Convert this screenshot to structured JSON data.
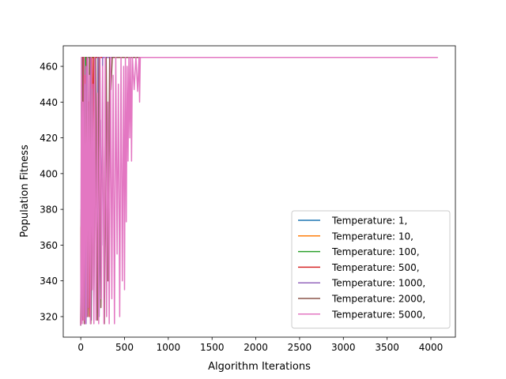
{
  "chart_data": {
    "type": "line",
    "title": "",
    "xlabel": "Algorithm Iterations",
    "ylabel": "Population Fitness",
    "xlim": [
      -200,
      4280
    ],
    "ylim": [
      308.5,
      471.5
    ],
    "xticks": [
      0,
      500,
      1000,
      1500,
      2000,
      2500,
      3000,
      3500,
      4000
    ],
    "yticks": [
      320,
      340,
      360,
      380,
      400,
      420,
      440,
      460
    ],
    "grid": false,
    "legend_position": "lower-right",
    "series": [
      {
        "name": "Temperature: 1,",
        "color": "#1f77b4",
        "converge_at": 20,
        "end_x": 4050,
        "points": [
          [
            0,
            315
          ],
          [
            2,
            360
          ],
          [
            4,
            318
          ],
          [
            6,
            440
          ],
          [
            8,
            330
          ],
          [
            10,
            465
          ],
          [
            12,
            350
          ],
          [
            15,
            420
          ],
          [
            18,
            465
          ],
          [
            20,
            465
          ],
          [
            4050,
            465
          ]
        ]
      },
      {
        "name": "Temperature: 10,",
        "color": "#ff7f0e",
        "converge_at": 30,
        "end_x": 4050,
        "points": [
          [
            0,
            316
          ],
          [
            3,
            370
          ],
          [
            6,
            320
          ],
          [
            9,
            450
          ],
          [
            12,
            335
          ],
          [
            15,
            465
          ],
          [
            18,
            345
          ],
          [
            22,
            430
          ],
          [
            26,
            465
          ],
          [
            30,
            465
          ],
          [
            4050,
            465
          ]
        ]
      },
      {
        "name": "Temperature: 100,",
        "color": "#2ca02c",
        "converge_at": 60,
        "end_x": 4050,
        "points": [
          [
            0,
            315
          ],
          [
            5,
            380
          ],
          [
            10,
            320
          ],
          [
            15,
            455
          ],
          [
            20,
            330
          ],
          [
            25,
            465
          ],
          [
            30,
            350
          ],
          [
            35,
            440
          ],
          [
            40,
            325
          ],
          [
            45,
            465
          ],
          [
            50,
            360
          ],
          [
            55,
            465
          ],
          [
            60,
            465
          ],
          [
            4050,
            465
          ]
        ]
      },
      {
        "name": "Temperature: 500,",
        "color": "#d62728",
        "converge_at": 150,
        "end_x": 4050,
        "points": [
          [
            0,
            316
          ],
          [
            10,
            430
          ],
          [
            20,
            318
          ],
          [
            30,
            465
          ],
          [
            40,
            335
          ],
          [
            50,
            455
          ],
          [
            60,
            320
          ],
          [
            70,
            465
          ],
          [
            80,
            345
          ],
          [
            90,
            440
          ],
          [
            100,
            320
          ],
          [
            110,
            465
          ],
          [
            120,
            350
          ],
          [
            130,
            465
          ],
          [
            140,
            400
          ],
          [
            150,
            465
          ],
          [
            4050,
            465
          ]
        ]
      },
      {
        "name": "Temperature: 1000,",
        "color": "#9467bd",
        "converge_at": 250,
        "end_x": 4050,
        "points": [
          [
            0,
            315
          ],
          [
            15,
            465
          ],
          [
            30,
            320
          ],
          [
            45,
            450
          ],
          [
            60,
            316
          ],
          [
            75,
            465
          ],
          [
            90,
            330
          ],
          [
            105,
            465
          ],
          [
            120,
            318
          ],
          [
            135,
            445
          ],
          [
            150,
            325
          ],
          [
            165,
            465
          ],
          [
            180,
            340
          ],
          [
            195,
            465
          ],
          [
            210,
            320
          ],
          [
            225,
            430
          ],
          [
            240,
            360
          ],
          [
            250,
            465
          ],
          [
            4050,
            465
          ]
        ]
      },
      {
        "name": "Temperature: 2000,",
        "color": "#8c564b",
        "converge_at": 360,
        "end_x": 4050,
        "points": [
          [
            0,
            315
          ],
          [
            20,
            465
          ],
          [
            40,
            316
          ],
          [
            60,
            455
          ],
          [
            80,
            320
          ],
          [
            100,
            465
          ],
          [
            115,
            316
          ],
          [
            130,
            447
          ],
          [
            150,
            330
          ],
          [
            170,
            465
          ],
          [
            190,
            318
          ],
          [
            210,
            465
          ],
          [
            230,
            325
          ],
          [
            250,
            440
          ],
          [
            270,
            316
          ],
          [
            290,
            465
          ],
          [
            310,
            340
          ],
          [
            330,
            465
          ],
          [
            345,
            447
          ],
          [
            360,
            465
          ],
          [
            4050,
            465
          ]
        ]
      },
      {
        "name": "Temperature: 5000,",
        "color": "#e377c2",
        "converge_at": 680,
        "end_x": 4080,
        "points": [
          [
            0,
            315
          ],
          [
            8,
            465
          ],
          [
            16,
            316
          ],
          [
            24,
            440
          ],
          [
            32,
            318
          ],
          [
            40,
            465
          ],
          [
            50,
            316
          ],
          [
            60,
            460
          ],
          [
            70,
            320
          ],
          [
            80,
            465
          ],
          [
            90,
            325
          ],
          [
            100,
            455
          ],
          [
            110,
            316
          ],
          [
            120,
            465
          ],
          [
            130,
            335
          ],
          [
            140,
            450
          ],
          [
            150,
            316
          ],
          [
            160,
            465
          ],
          [
            175,
            318
          ],
          [
            190,
            445
          ],
          [
            205,
            316
          ],
          [
            220,
            465
          ],
          [
            235,
            330
          ],
          [
            250,
            460
          ],
          [
            265,
            316
          ],
          [
            280,
            465
          ],
          [
            295,
            320
          ],
          [
            310,
            440
          ],
          [
            325,
            316
          ],
          [
            340,
            465
          ],
          [
            355,
            330
          ],
          [
            370,
            455
          ],
          [
            385,
            316
          ],
          [
            400,
            465
          ],
          [
            415,
            355
          ],
          [
            430,
            450
          ],
          [
            445,
            320
          ],
          [
            460,
            465
          ],
          [
            475,
            340
          ],
          [
            490,
            460
          ],
          [
            500,
            335
          ],
          [
            510,
            465
          ],
          [
            520,
            373
          ],
          [
            530,
            460
          ],
          [
            540,
            407
          ],
          [
            550,
            465
          ],
          [
            560,
            420
          ],
          [
            570,
            465
          ],
          [
            580,
            407
          ],
          [
            590,
            465
          ],
          [
            610,
            447
          ],
          [
            630,
            465
          ],
          [
            650,
            446
          ],
          [
            665,
            465
          ],
          [
            672,
            440
          ],
          [
            680,
            465
          ],
          [
            4080,
            465
          ]
        ]
      }
    ]
  }
}
